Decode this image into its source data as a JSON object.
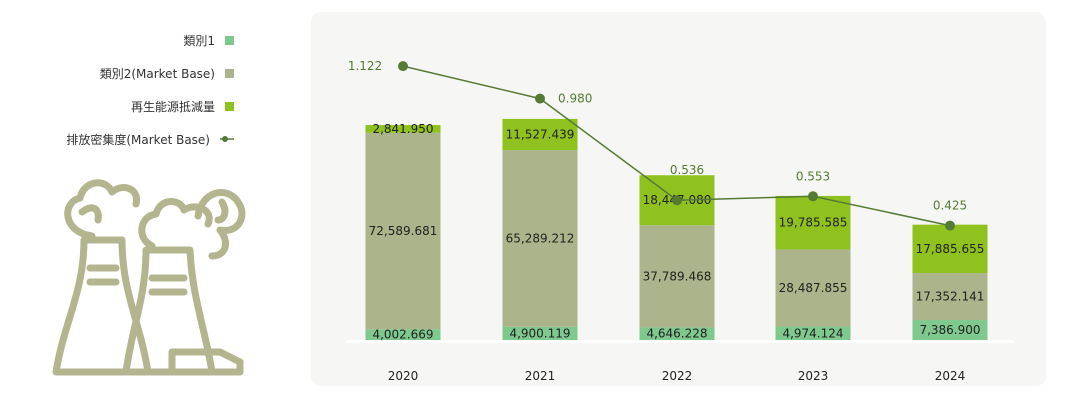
{
  "legend": {
    "items": [
      {
        "label": "類別1",
        "color": "#7fc98f",
        "kind": "square"
      },
      {
        "label": "類別2(Market Base)",
        "color": "#abb48a",
        "kind": "square"
      },
      {
        "label": "再生能源抵減量",
        "color": "#8fc21f",
        "kind": "square"
      },
      {
        "label": "排放密集度(Market Base)",
        "color": "#557a35",
        "kind": "line-dot"
      }
    ]
  },
  "illustration": {
    "icon": "factory-cooling-tower-icon",
    "color": "#b3b58f"
  },
  "colors": {
    "category1": "#7fc98f",
    "category2": "#abb48a",
    "renewable": "#8fc21f",
    "intensity": "#557a35",
    "panel": "#f6f7f4"
  },
  "chart_data": {
    "type": "bar",
    "stacked": true,
    "categories": [
      "2020",
      "2021",
      "2022",
      "2023",
      "2024"
    ],
    "series": [
      {
        "name": "類別1",
        "values": [
          4002.669,
          4900.119,
          4646.228,
          4974.124,
          7386.9
        ],
        "labels": [
          "4,002.669",
          "4,900.119",
          "4,646.228",
          "4,974.124",
          "7,386.900"
        ]
      },
      {
        "name": "類別2(Market Base)",
        "values": [
          72589.681,
          65289.212,
          37789.468,
          28487.855,
          17352.141
        ],
        "labels": [
          "72,589.681",
          "65,289.212",
          "37,789.468",
          "28,487.855",
          "17,352.141"
        ]
      },
      {
        "name": "再生能源抵減量",
        "values": [
          2841.95,
          11527.439,
          18447.08,
          19785.585,
          17885.655
        ],
        "labels": [
          "2,841.950",
          "11,527.439",
          "18,447.080",
          "19,785.585",
          "17,885.655"
        ]
      }
    ],
    "line_series": {
      "name": "排放密集度(Market Base)",
      "values": [
        1.122,
        0.98,
        0.536,
        0.553,
        0.425
      ],
      "labels": [
        "1.122",
        "0.980",
        "0.536",
        "0.553",
        "0.425"
      ]
    },
    "legend_position": "left",
    "grid": false
  }
}
